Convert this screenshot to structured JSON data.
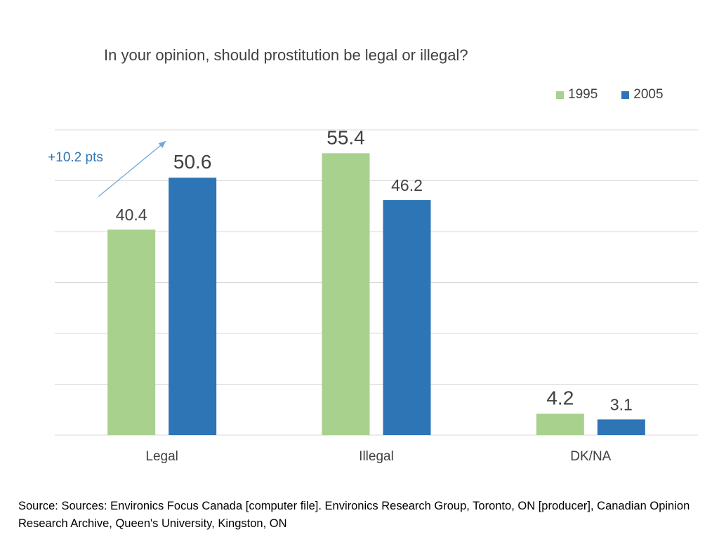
{
  "source": "Source:  Sources: Environics Focus Canada [computer file]. Environics Research Group, Toronto, ON [producer], Canadian Opinion Research Archive, Queen's University, Kingston, ON",
  "colors": {
    "series_1995": "#a9d18e",
    "series_2005": "#2e75b6",
    "gridline": "#d9d9d9",
    "text": "#404040",
    "annotation": "#2e75b6"
  },
  "chart_data": {
    "type": "bar",
    "title": "In your opinion, should prostitution be legal or illegal?",
    "xlabel": "",
    "ylabel": "",
    "categories": [
      "Legal",
      "Illegal",
      "DK/NA"
    ],
    "series": [
      {
        "name": "1995",
        "values": [
          40.4,
          55.4,
          4.2
        ],
        "labels": [
          "40.4",
          "55.4",
          "4.2"
        ]
      },
      {
        "name": "2005",
        "values": [
          50.6,
          46.2,
          3.1
        ],
        "labels": [
          "50.6",
          "46.2",
          "3.1"
        ]
      }
    ],
    "ylim": [
      0,
      60
    ],
    "gridlines": true,
    "legend": "top-right",
    "annotation": {
      "text": "+10.2 pts",
      "category": "Legal"
    }
  }
}
